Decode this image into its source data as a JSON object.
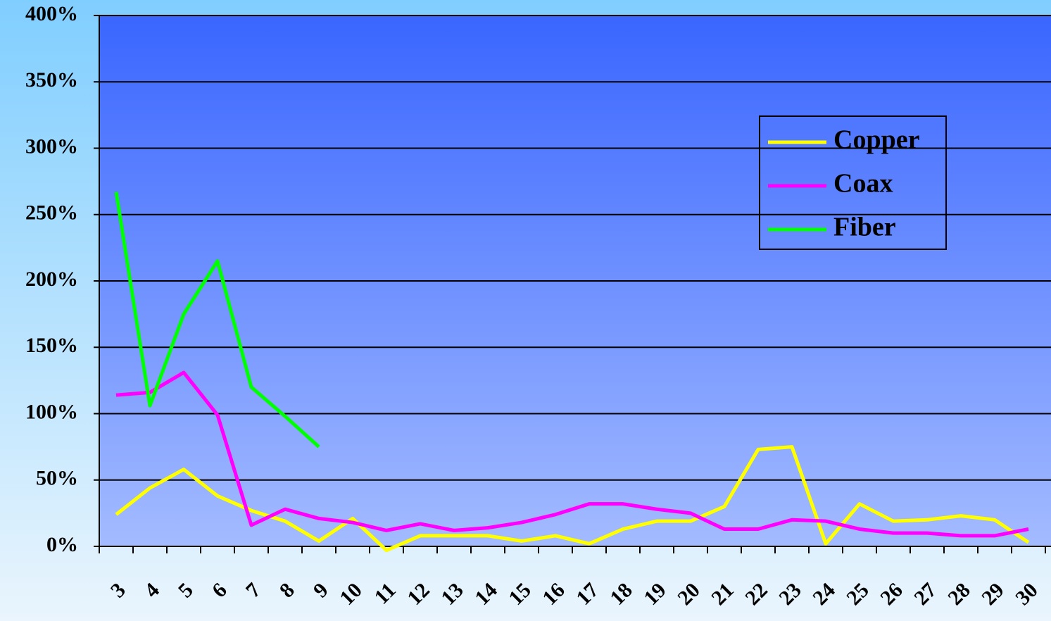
{
  "chart_data": {
    "type": "line",
    "categories": [
      "3",
      "4",
      "5",
      "6",
      "7",
      "8",
      "9",
      "10",
      "11",
      "12",
      "13",
      "14",
      "15",
      "16",
      "17",
      "18",
      "19",
      "20",
      "21",
      "22",
      "23",
      "24",
      "25",
      "26",
      "27",
      "28",
      "29",
      "30"
    ],
    "series": [
      {
        "name": "Copper",
        "color": "#ffff00",
        "values": [
          24,
          44,
          58,
          38,
          27,
          19,
          4,
          21,
          -3,
          8,
          8,
          8,
          4,
          8,
          2,
          13,
          19,
          19,
          30,
          73,
          75,
          2,
          32,
          19,
          20,
          23,
          20,
          3
        ]
      },
      {
        "name": "Coax",
        "color": "#ff00ff",
        "values": [
          114,
          116,
          131,
          99,
          16,
          28,
          21,
          18,
          12,
          17,
          12,
          14,
          18,
          24,
          32,
          32,
          28,
          25,
          13,
          13,
          20,
          19,
          13,
          10,
          10,
          8,
          8,
          13
        ]
      },
      {
        "name": "Fiber",
        "color": "#00ff00",
        "values": [
          267,
          106,
          175,
          215,
          120,
          98,
          75,
          null,
          null,
          null,
          null,
          null,
          null,
          null,
          null,
          null,
          null,
          null,
          null,
          null,
          null,
          null,
          null,
          null,
          null,
          null,
          null,
          null
        ]
      }
    ],
    "ylim": [
      0,
      400
    ],
    "yticks": [
      {
        "value": 0,
        "label": "0%"
      },
      {
        "value": 50,
        "label": "50%"
      },
      {
        "value": 100,
        "label": "100%"
      },
      {
        "value": 150,
        "label": "150%"
      },
      {
        "value": 200,
        "label": "200%"
      },
      {
        "value": 250,
        "label": "250%"
      },
      {
        "value": 300,
        "label": "300%"
      },
      {
        "value": 350,
        "label": "350%"
      },
      {
        "value": 400,
        "label": "400%"
      }
    ],
    "grid": true,
    "legend": "upper right"
  }
}
